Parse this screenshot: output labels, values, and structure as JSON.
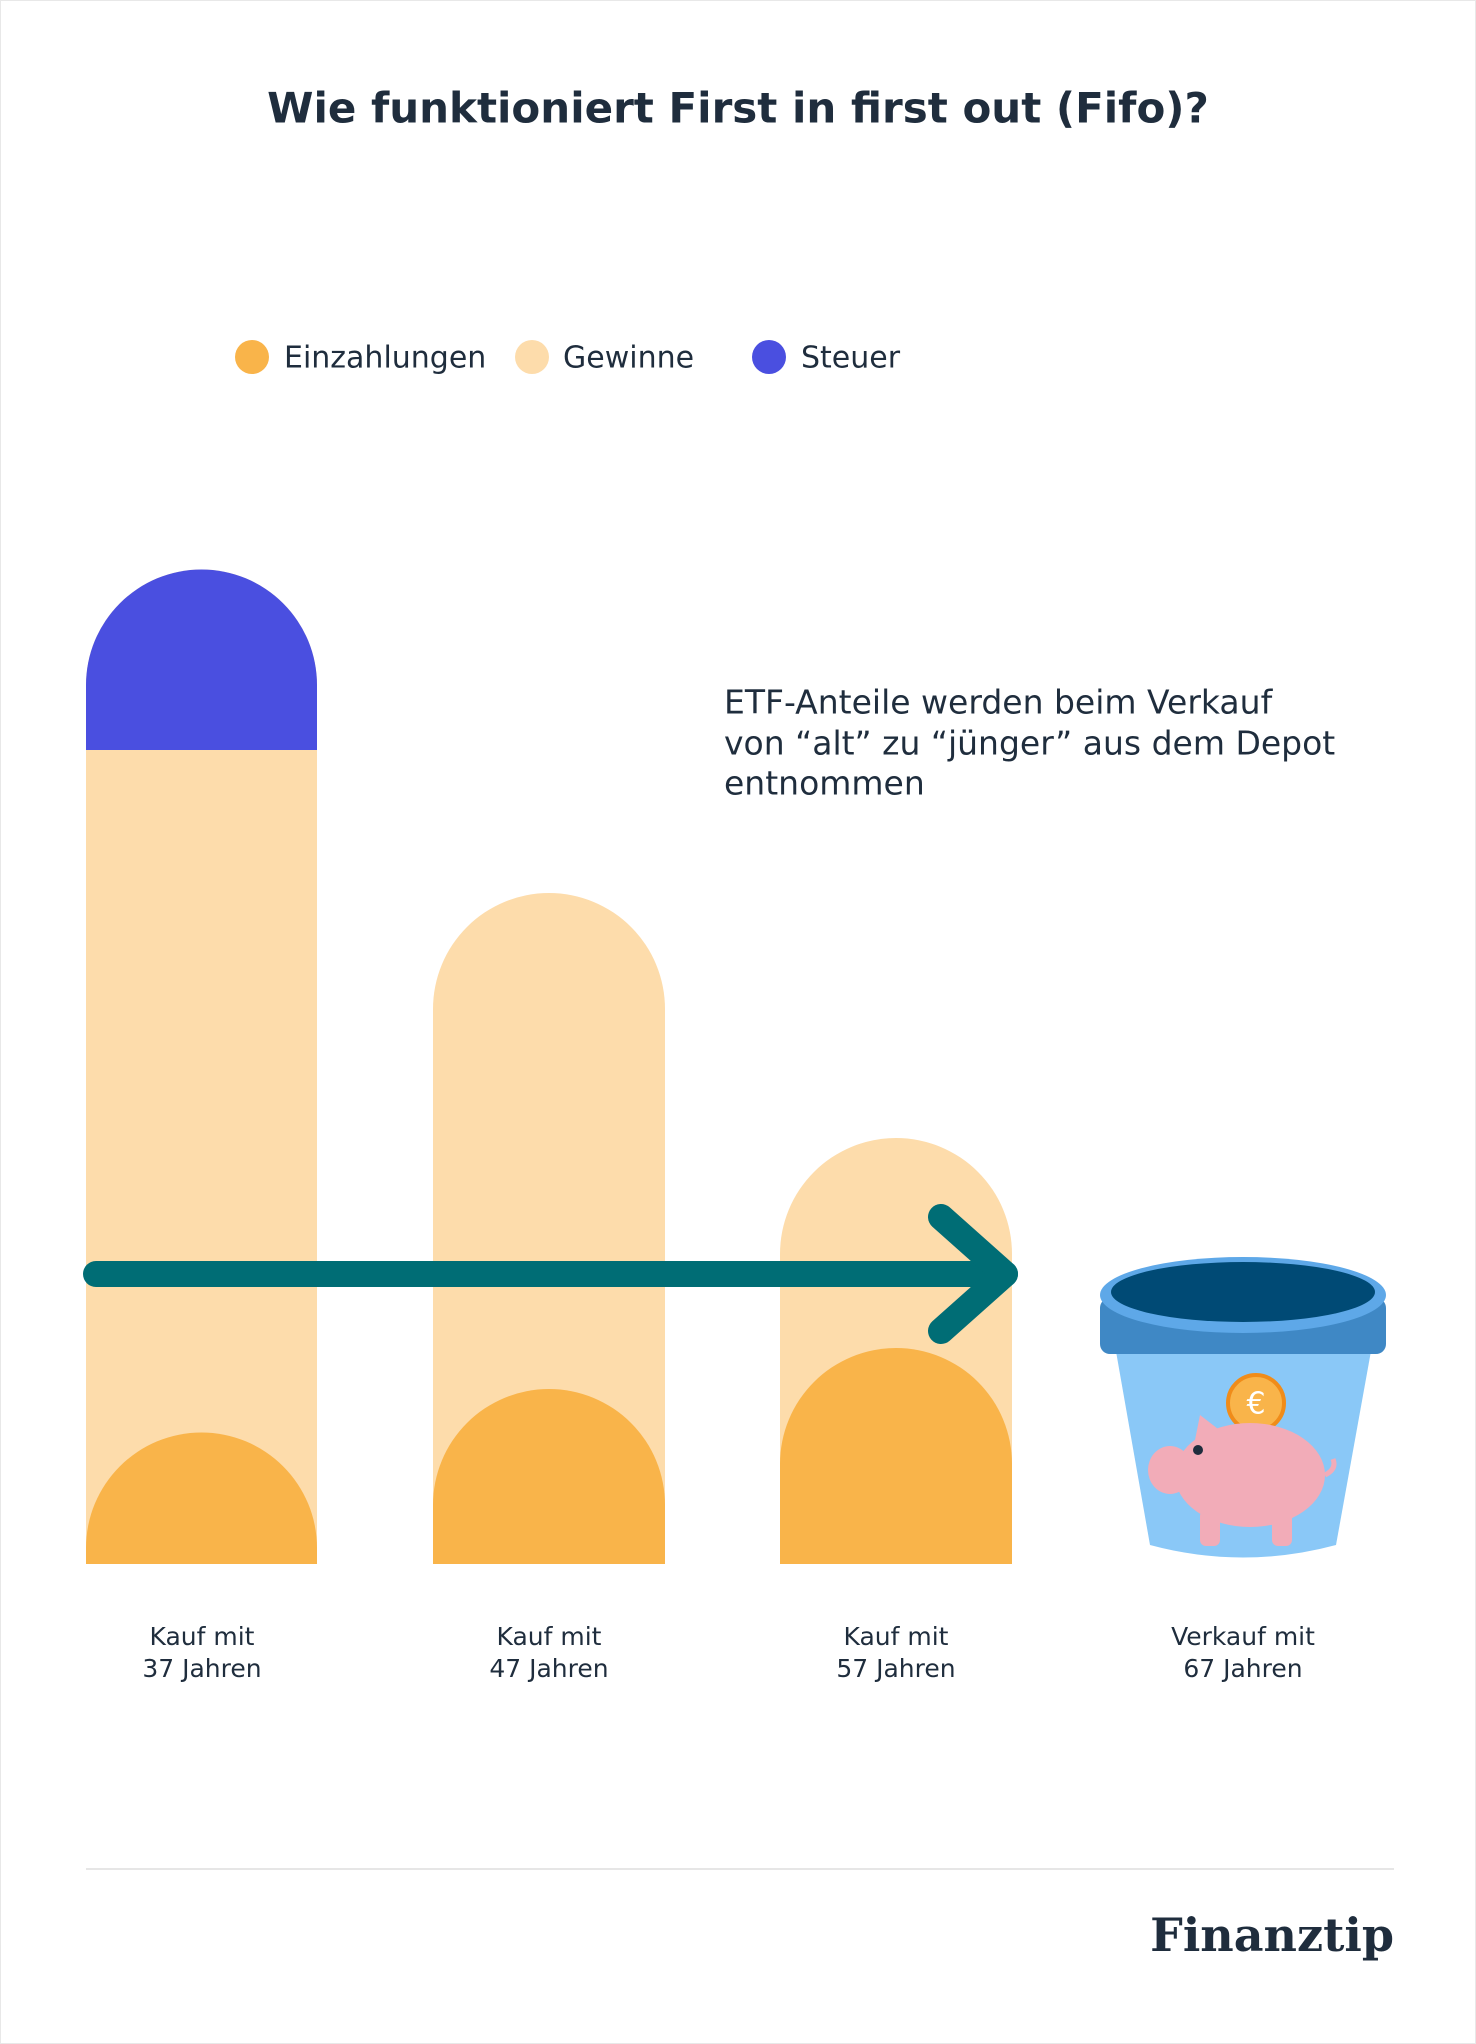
{
  "header": {
    "title": "Wie funktioniert First in first out (Fifo)?"
  },
  "legend": [
    "Einzahlungen",
    "Gewinne",
    "Steuer"
  ],
  "annotation": [
    "ETF-Anteile werden beim Verkauf",
    "von “alt” zu “jünger” aus dem Depot",
    "entnommen"
  ],
  "labels": [
    [
      "Kauf mit",
      "37 Jahren"
    ],
    [
      "Kauf mit",
      "47 Jahren"
    ],
    [
      "Kauf mit",
      "57 Jahren"
    ],
    [
      "Verkauf mit",
      "67 Jahren"
    ]
  ],
  "footer": {
    "brand": "Finanztip"
  }
}
